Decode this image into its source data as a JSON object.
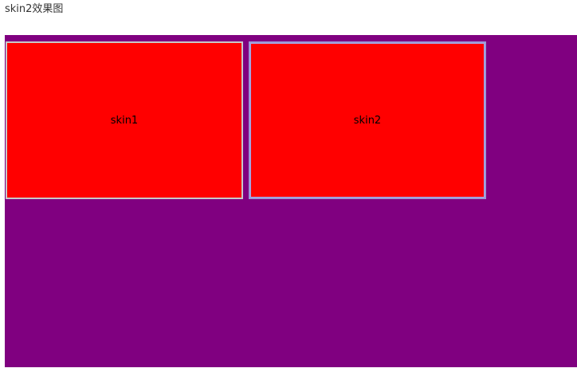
{
  "page": {
    "title": "skin2效果图"
  },
  "stage": {
    "background": "#800080"
  },
  "boxes": [
    {
      "label": "skin1",
      "background": "#ff0000"
    },
    {
      "label": "skin2",
      "background": "#ff0000"
    }
  ]
}
